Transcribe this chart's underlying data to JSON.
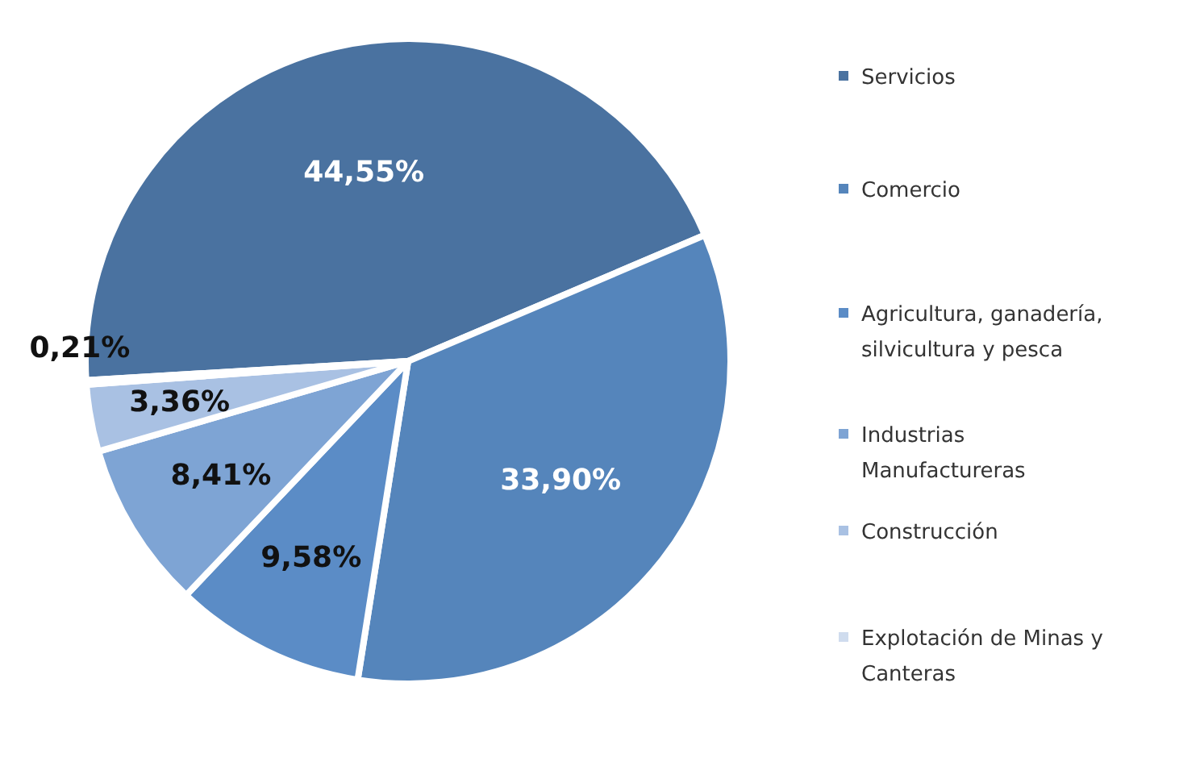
{
  "chart_data": {
    "type": "pie",
    "categories": [
      "Servicios",
      "Comercio",
      "Agricultura, ganadería, silvicultura y pesca",
      "Industrias Manufactureras",
      "Construcción",
      "Explotación de Minas y Canteras"
    ],
    "values": [
      44.55,
      33.9,
      9.58,
      8.41,
      3.36,
      0.21
    ],
    "colors": [
      "#4a72a0",
      "#5585bb",
      "#5b8cc6",
      "#7ea4d4",
      "#a9c1e3",
      "#cfdcee"
    ],
    "value_labels": [
      "44,55%",
      "33,90%",
      "9,58%",
      "8,41%",
      "3,36%",
      "0,21%"
    ],
    "legend": "right"
  }
}
